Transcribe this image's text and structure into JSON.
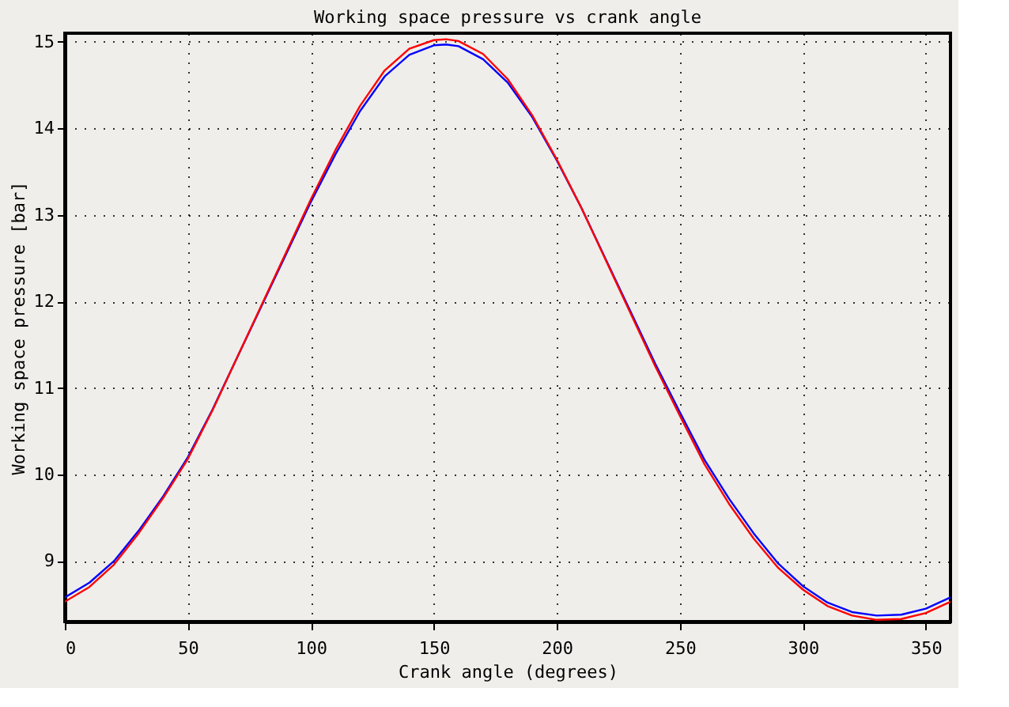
{
  "chart_data": {
    "type": "line",
    "title": "Working space pressure vs crank angle",
    "xlabel": "Crank angle (degrees)",
    "ylabel": "Working space pressure [bar]",
    "x": [
      0,
      10,
      20,
      30,
      40,
      50,
      60,
      70,
      80,
      90,
      100,
      110,
      120,
      130,
      140,
      150,
      155,
      160,
      170,
      180,
      190,
      200,
      210,
      220,
      230,
      240,
      250,
      260,
      270,
      280,
      290,
      300,
      310,
      320,
      330,
      340,
      350,
      360
    ],
    "series": [
      {
        "color": "#0000ff",
        "values": [
          8.58,
          8.75,
          9.0,
          9.35,
          9.75,
          10.2,
          10.75,
          11.35,
          11.95,
          12.55,
          13.15,
          13.7,
          14.2,
          14.6,
          14.85,
          14.96,
          14.97,
          14.95,
          14.8,
          14.53,
          14.13,
          13.63,
          13.08,
          12.48,
          11.88,
          11.28,
          10.72,
          10.17,
          9.72,
          9.32,
          8.97,
          8.71,
          8.52,
          8.41,
          8.37,
          8.38,
          8.45,
          8.58
        ]
      },
      {
        "color": "#ff0000",
        "values": [
          8.53,
          8.7,
          8.96,
          9.32,
          9.73,
          10.18,
          10.74,
          11.35,
          11.96,
          12.57,
          13.18,
          13.75,
          14.26,
          14.67,
          14.92,
          15.02,
          15.03,
          15.01,
          14.86,
          14.57,
          14.15,
          13.64,
          13.08,
          12.47,
          11.86,
          11.25,
          10.68,
          10.12,
          9.66,
          9.26,
          8.92,
          8.67,
          8.48,
          8.37,
          8.32,
          8.33,
          8.4,
          8.53
        ]
      }
    ],
    "xlim": [
      0,
      360
    ],
    "xticks": [
      0,
      50,
      100,
      150,
      200,
      250,
      300,
      350
    ],
    "ylim": [
      8.3,
      15.1
    ],
    "yticks": [
      9,
      10,
      11,
      12,
      13,
      14,
      15
    ],
    "grid": true,
    "legend": false,
    "marker": "none",
    "line_style": "solid"
  }
}
